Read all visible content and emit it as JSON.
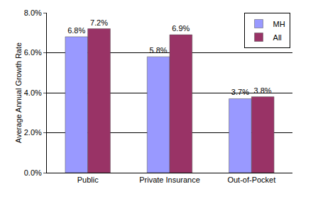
{
  "chart_data": {
    "type": "bar",
    "categories": [
      "Public",
      "Private Insurance",
      "Out-of-Pocket"
    ],
    "series": [
      {
        "name": "MH",
        "color": "#9999ff",
        "values": [
          6.8,
          5.8,
          3.7
        ],
        "value_labels": [
          "6.8%",
          "5.8%",
          "3.7%"
        ]
      },
      {
        "name": "All",
        "color": "#993366",
        "values": [
          7.2,
          6.9,
          3.8
        ],
        "value_labels": [
          "7.2%",
          "6.9%",
          "3.8%"
        ]
      }
    ],
    "y_label": "Average Annual Growth Rate",
    "ylim": [
      0,
      8
    ],
    "yticks": [
      {
        "value": 0,
        "label": "0.0%"
      },
      {
        "value": 2,
        "label": "2.0%"
      },
      {
        "value": 4,
        "label": "4.0%"
      },
      {
        "value": 6,
        "label": "6.0%"
      },
      {
        "value": 8,
        "label": "8.0%"
      }
    ],
    "grid": true,
    "legend": "top-right",
    "data_labels": true
  }
}
